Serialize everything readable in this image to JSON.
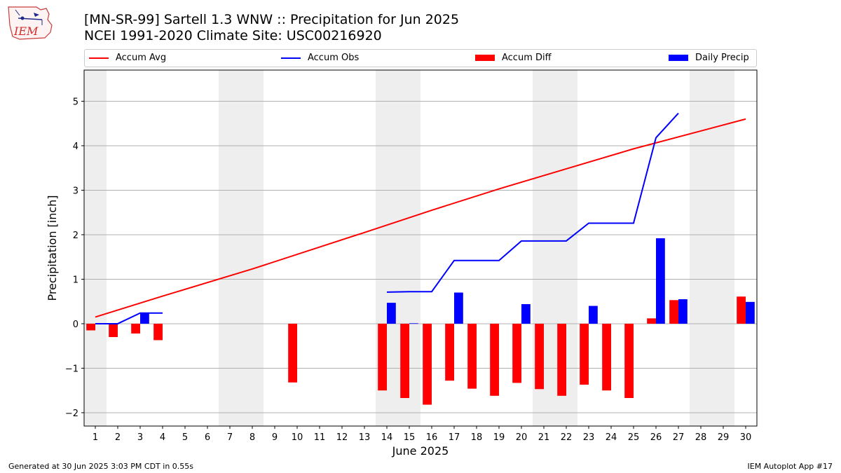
{
  "header": {
    "title_line1": "[MN-SR-99] Sartell 1.3 WNW :: Precipitation for Jun 2025",
    "title_line2": "NCEI 1991-2020 Climate Site: USC00216920"
  },
  "logo": {
    "text": "IEM",
    "color": "#d42b2b"
  },
  "legend": [
    {
      "label": "Accum Avg",
      "kind": "line",
      "color": "#ff0000"
    },
    {
      "label": "Accum Obs",
      "kind": "line",
      "color": "#0000ff"
    },
    {
      "label": "Accum Diff",
      "kind": "box",
      "color": "#ff0000"
    },
    {
      "label": "Daily Precip",
      "kind": "box",
      "color": "#0000ff"
    }
  ],
  "footer": {
    "left": "Generated at 30 Jun 2025 3:03 PM CDT in 0.55s",
    "right": "IEM Autoplot App #17"
  },
  "chart_data": {
    "type": "bar",
    "title": "[MN-SR-99] Sartell 1.3 WNW :: Precipitation for Jun 2025",
    "xlabel": "June 2025",
    "ylabel": "Precipitation [inch]",
    "xlim": [
      0.5,
      30.5
    ],
    "ylim": [
      -2.3,
      5.7
    ],
    "yticks": [
      -2,
      -1,
      0,
      1,
      2,
      3,
      4,
      5
    ],
    "ytick_labels": [
      "−2",
      "−1",
      "0",
      "1",
      "2",
      "3",
      "4",
      "5"
    ],
    "xticks": [
      1,
      2,
      3,
      4,
      5,
      6,
      7,
      8,
      9,
      10,
      11,
      12,
      13,
      14,
      15,
      16,
      17,
      18,
      19,
      20,
      21,
      22,
      23,
      24,
      25,
      26,
      27,
      28,
      29,
      30
    ],
    "grid": "horizontal",
    "weekend_shading": [
      [
        0.5,
        1.5
      ],
      [
        6.5,
        8.5
      ],
      [
        13.5,
        15.5
      ],
      [
        20.5,
        22.5
      ],
      [
        27.5,
        29.5
      ]
    ],
    "colors": {
      "avg": "#ff0000",
      "obs": "#0000ff",
      "diff": "#ff0000",
      "daily": "#0000ff",
      "weekend": "#eeeeee",
      "grid": "#b0b0b0"
    },
    "accum_avg": {
      "x": [
        1,
        4,
        8,
        13,
        16,
        19,
        22,
        25,
        30
      ],
      "y": [
        0.15,
        0.62,
        1.23,
        2.05,
        2.55,
        3.03,
        3.48,
        3.93,
        4.6
      ]
    },
    "accum_obs": {
      "segments": [
        {
          "x": [
            1,
            2,
            3,
            4
          ],
          "y": [
            0.0,
            0.0,
            0.24,
            0.24
          ]
        },
        {
          "x": [
            14,
            15,
            16,
            17,
            18,
            19,
            20,
            21,
            22,
            23,
            24,
            25,
            26,
            27
          ],
          "y": [
            0.71,
            0.72,
            0.72,
            1.42,
            1.42,
            1.42,
            1.86,
            1.86,
            1.86,
            2.26,
            2.26,
            2.26,
            4.18,
            4.73
          ]
        }
      ]
    },
    "accum_diff": {
      "x": [
        1,
        2,
        3,
        4,
        10,
        14,
        15,
        16,
        17,
        18,
        19,
        20,
        21,
        22,
        23,
        24,
        25,
        26,
        27,
        30
      ],
      "values": [
        -0.15,
        -0.3,
        -0.22,
        -0.37,
        -1.32,
        -1.5,
        -1.67,
        -1.82,
        -1.28,
        -1.46,
        -1.62,
        -1.33,
        -1.47,
        -1.62,
        -1.37,
        -1.5,
        -1.67,
        0.12,
        0.53,
        0.61
      ]
    },
    "daily_precip": {
      "x": [
        3,
        14,
        15,
        17,
        20,
        23,
        26,
        27,
        30
      ],
      "values": [
        0.24,
        0.47,
        0.01,
        0.7,
        0.44,
        0.4,
        1.92,
        0.55,
        0.49
      ]
    }
  }
}
